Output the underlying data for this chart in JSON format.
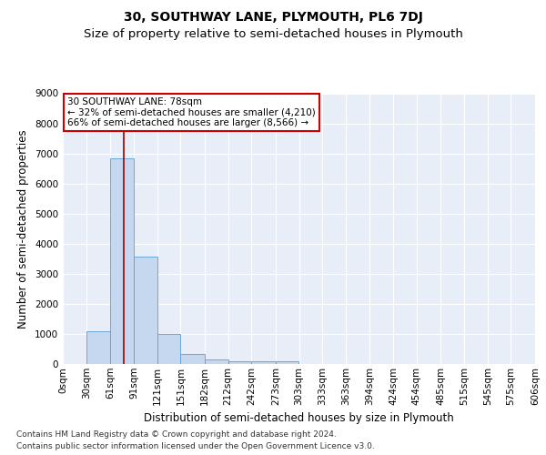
{
  "title": "30, SOUTHWAY LANE, PLYMOUTH, PL6 7DJ",
  "subtitle": "Size of property relative to semi-detached houses in Plymouth",
  "xlabel": "Distribution of semi-detached houses by size in Plymouth",
  "ylabel": "Number of semi-detached properties",
  "annotation_line1": "30 SOUTHWAY LANE: 78sqm",
  "annotation_line2": "← 32% of semi-detached houses are smaller (4,210)",
  "annotation_line3": "66% of semi-detached houses are larger (8,566) →",
  "footer1": "Contains HM Land Registry data © Crown copyright and database right 2024.",
  "footer2": "Contains public sector information licensed under the Open Government Licence v3.0.",
  "bar_edges": [
    0,
    30,
    61,
    91,
    121,
    151,
    182,
    212,
    242,
    273,
    303,
    333,
    363,
    394,
    424,
    454,
    485,
    515,
    545,
    575,
    606
  ],
  "bar_heights": [
    0,
    1100,
    6850,
    3570,
    1000,
    320,
    150,
    100,
    100,
    80,
    0,
    0,
    0,
    0,
    0,
    0,
    0,
    0,
    0,
    0
  ],
  "bar_color": "#c5d8f0",
  "bar_edge_color": "#5a9fd4",
  "vline_color": "#990000",
  "vline_x": 78,
  "ylim": [
    0,
    9000
  ],
  "yticks": [
    0,
    1000,
    2000,
    3000,
    4000,
    5000,
    6000,
    7000,
    8000,
    9000
  ],
  "background_color": "#e8eef8",
  "grid_color": "#ffffff",
  "annotation_box_facecolor": "#ffffff",
  "annotation_box_edgecolor": "#cc0000",
  "title_fontsize": 10,
  "subtitle_fontsize": 9.5,
  "axis_label_fontsize": 8.5,
  "tick_fontsize": 7.5,
  "annotation_fontsize": 7.5,
  "footer_fontsize": 6.5
}
